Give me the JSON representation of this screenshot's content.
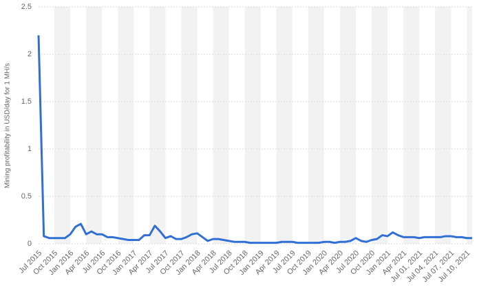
{
  "chart_data": {
    "type": "line",
    "y_label": "Mining profitability in USD/day for 1 MH/s",
    "categories": [
      "Jul 2015",
      null,
      null,
      "Oct 2015",
      null,
      null,
      "Jan 2016",
      null,
      null,
      "Apr 2016",
      null,
      null,
      "Jul 2016",
      null,
      null,
      "Oct 2016",
      null,
      null,
      "Jan 2017",
      null,
      null,
      "Apr 2017",
      null,
      null,
      "Jul 2017",
      null,
      null,
      "Oct 2017",
      null,
      null,
      "Jan 2018",
      null,
      null,
      "Apr 2018",
      null,
      null,
      "Jul 2018",
      null,
      null,
      "Oct 2018",
      null,
      null,
      "Jan 2019",
      null,
      null,
      "Apr 2019",
      null,
      null,
      "Jul 2019",
      null,
      null,
      "Oct 2019",
      null,
      null,
      "Jan 2020",
      null,
      null,
      "Apr 2020",
      null,
      null,
      "Jul 2020",
      null,
      null,
      "Oct 2020",
      null,
      null,
      "Jan 2021",
      null,
      null,
      "Apr 2021",
      null,
      null,
      "Jul 01, 2021",
      null,
      null,
      "Jul 04, 2021",
      null,
      null,
      "Jul 07, 2021",
      null,
      null,
      "Jul 10, 2021",
      null
    ],
    "series": [
      {
        "color": "#2f6fd6",
        "values": [
          2.2,
          0.08,
          0.06,
          0.06,
          0.06,
          0.06,
          0.1,
          0.18,
          0.21,
          0.1,
          0.13,
          0.1,
          0.1,
          0.07,
          0.07,
          0.06,
          0.05,
          0.04,
          0.04,
          0.04,
          0.09,
          0.09,
          0.19,
          0.13,
          0.06,
          0.08,
          0.05,
          0.05,
          0.07,
          0.1,
          0.11,
          0.07,
          0.03,
          0.05,
          0.05,
          0.04,
          0.03,
          0.02,
          0.02,
          0.02,
          0.01,
          0.01,
          0.01,
          0.01,
          0.01,
          0.01,
          0.02,
          0.02,
          0.02,
          0.01,
          0.01,
          0.01,
          0.01,
          0.01,
          0.02,
          0.02,
          0.01,
          0.02,
          0.02,
          0.03,
          0.06,
          0.03,
          0.02,
          0.04,
          0.05,
          0.09,
          0.08,
          0.12,
          0.09,
          0.07,
          0.07,
          0.07,
          0.06,
          0.07,
          0.07,
          0.07,
          0.07,
          0.08,
          0.08,
          0.07,
          0.07,
          0.06,
          0.06
        ]
      }
    ],
    "ylim": [
      0,
      2.5
    ],
    "yticks": [
      0,
      0.5,
      1,
      1.5,
      2,
      2.5
    ],
    "grid": true
  }
}
